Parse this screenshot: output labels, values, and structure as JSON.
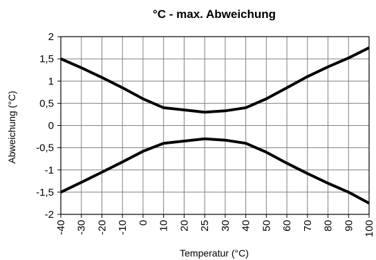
{
  "chart_data": {
    "type": "line",
    "title": "°C - max. Abweichung",
    "xlabel": "Temperatur (°C)",
    "ylabel": "Abweichung (°C)",
    "x": [
      -40,
      -30,
      -20,
      -10,
      0,
      10,
      20,
      25,
      30,
      40,
      50,
      60,
      70,
      80,
      90,
      100
    ],
    "x_tick_labels": [
      "-40",
      "-30",
      "-20",
      "-10",
      "0",
      "10",
      "20",
      "25",
      "30",
      "40",
      "50",
      "60",
      "70",
      "80",
      "90",
      "100"
    ],
    "y_tick_values": [
      -2,
      -1.5,
      -1,
      -0.5,
      0,
      0.5,
      1,
      1.5,
      2
    ],
    "y_tick_labels": [
      "-2",
      "-1,5",
      "-1",
      "-0,5",
      "0",
      "0,5",
      "1",
      "1,5",
      "2"
    ],
    "ylim": [
      -2,
      2
    ],
    "grid": true,
    "series": [
      {
        "values": [
          1.5,
          1.3,
          1.08,
          0.85,
          0.6,
          0.4,
          0.35,
          0.3,
          0.33,
          0.4,
          0.6,
          0.85,
          1.1,
          1.32,
          1.52,
          1.75
        ],
        "color": "#000000"
      },
      {
        "values": [
          -1.5,
          -1.28,
          -1.05,
          -0.82,
          -0.58,
          -0.4,
          -0.35,
          -0.3,
          -0.33,
          -0.4,
          -0.6,
          -0.85,
          -1.08,
          -1.3,
          -1.5,
          -1.75
        ],
        "color": "#000000"
      }
    ]
  }
}
